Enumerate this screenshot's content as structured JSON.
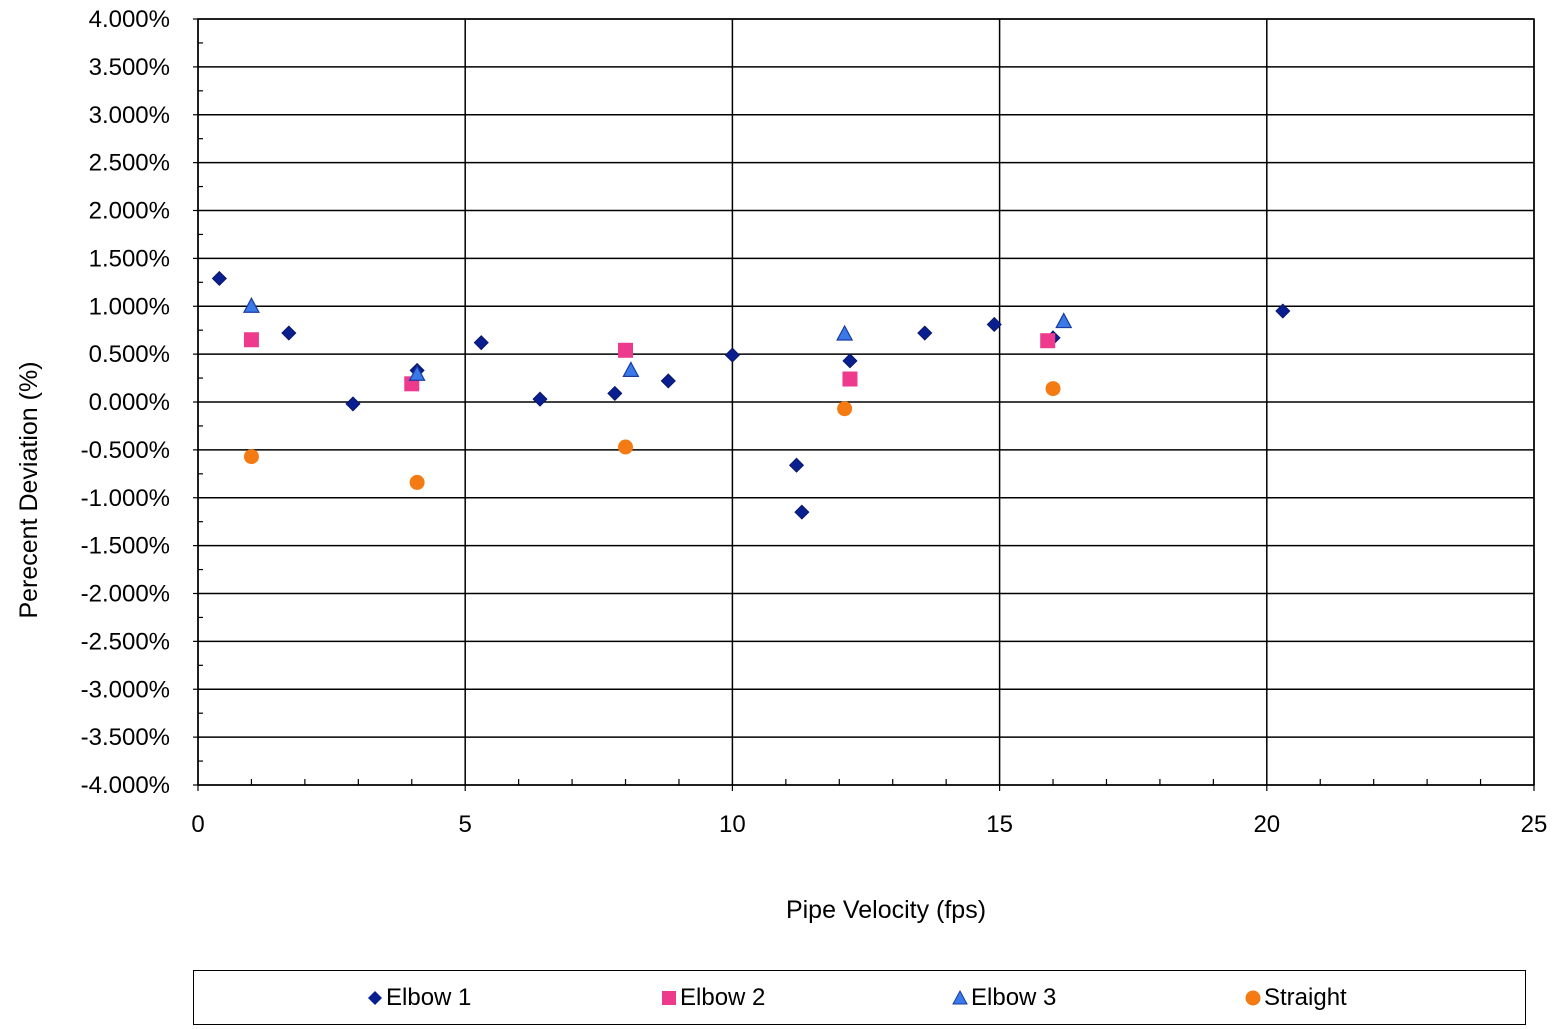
{
  "chart_data": {
    "type": "scatter",
    "title": "",
    "xlabel": "Pipe Velocity (fps)",
    "ylabel": "Perecent Deviation (%)",
    "xlim": [
      0,
      25
    ],
    "ylim": [
      -4.0,
      4.0
    ],
    "x_ticks": [
      0,
      5,
      10,
      15,
      20,
      25
    ],
    "y_ticks": [
      4.0,
      3.5,
      3.0,
      2.5,
      2.0,
      1.5,
      1.0,
      0.5,
      0.0,
      -0.5,
      -1.0,
      -1.5,
      -2.0,
      -2.5,
      -3.0,
      -3.5,
      -4.0
    ],
    "y_tick_labels": [
      "4.000%",
      "3.500%",
      "3.000%",
      "2.500%",
      "2.000%",
      "1.500%",
      "1.000%",
      "0.500%",
      "0.000%",
      "-0.500%",
      "-1.000%",
      "-1.500%",
      "-2.000%",
      "-2.500%",
      "-3.000%",
      "-3.500%",
      "-4.000%"
    ],
    "grid": true,
    "legend_position": "bottom",
    "series": [
      {
        "name": "Elbow 1",
        "color": "#0a1f8f",
        "marker": "diamond",
        "points": [
          [
            0.4,
            1.29
          ],
          [
            1.7,
            0.72
          ],
          [
            2.9,
            -0.02
          ],
          [
            4.1,
            0.33
          ],
          [
            5.3,
            0.62
          ],
          [
            6.4,
            0.03
          ],
          [
            7.8,
            0.09
          ],
          [
            8.8,
            0.22
          ],
          [
            10.0,
            0.49
          ],
          [
            11.2,
            -0.66
          ],
          [
            11.3,
            -1.15
          ],
          [
            12.2,
            0.43
          ],
          [
            13.6,
            0.72
          ],
          [
            14.9,
            0.81
          ],
          [
            16.0,
            0.67
          ],
          [
            20.3,
            0.95
          ]
        ]
      },
      {
        "name": "Elbow 2",
        "color": "#ee3a8c",
        "marker": "square",
        "points": [
          [
            1.0,
            0.65
          ],
          [
            4.0,
            0.19
          ],
          [
            8.0,
            0.54
          ],
          [
            12.2,
            0.24
          ],
          [
            15.9,
            0.64
          ]
        ]
      },
      {
        "name": "Elbow 3",
        "color": "#3a7ae8",
        "marker": "triangle",
        "points": [
          [
            1.0,
            1.0
          ],
          [
            4.1,
            0.29
          ],
          [
            8.1,
            0.33
          ],
          [
            12.1,
            0.71
          ],
          [
            16.2,
            0.84
          ]
        ]
      },
      {
        "name": "Straight",
        "color": "#f47a14",
        "marker": "circle",
        "points": [
          [
            1.0,
            -0.57
          ],
          [
            4.1,
            -0.84
          ],
          [
            8.0,
            -0.47
          ],
          [
            12.1,
            -0.07
          ],
          [
            16.0,
            0.14
          ]
        ]
      }
    ]
  }
}
